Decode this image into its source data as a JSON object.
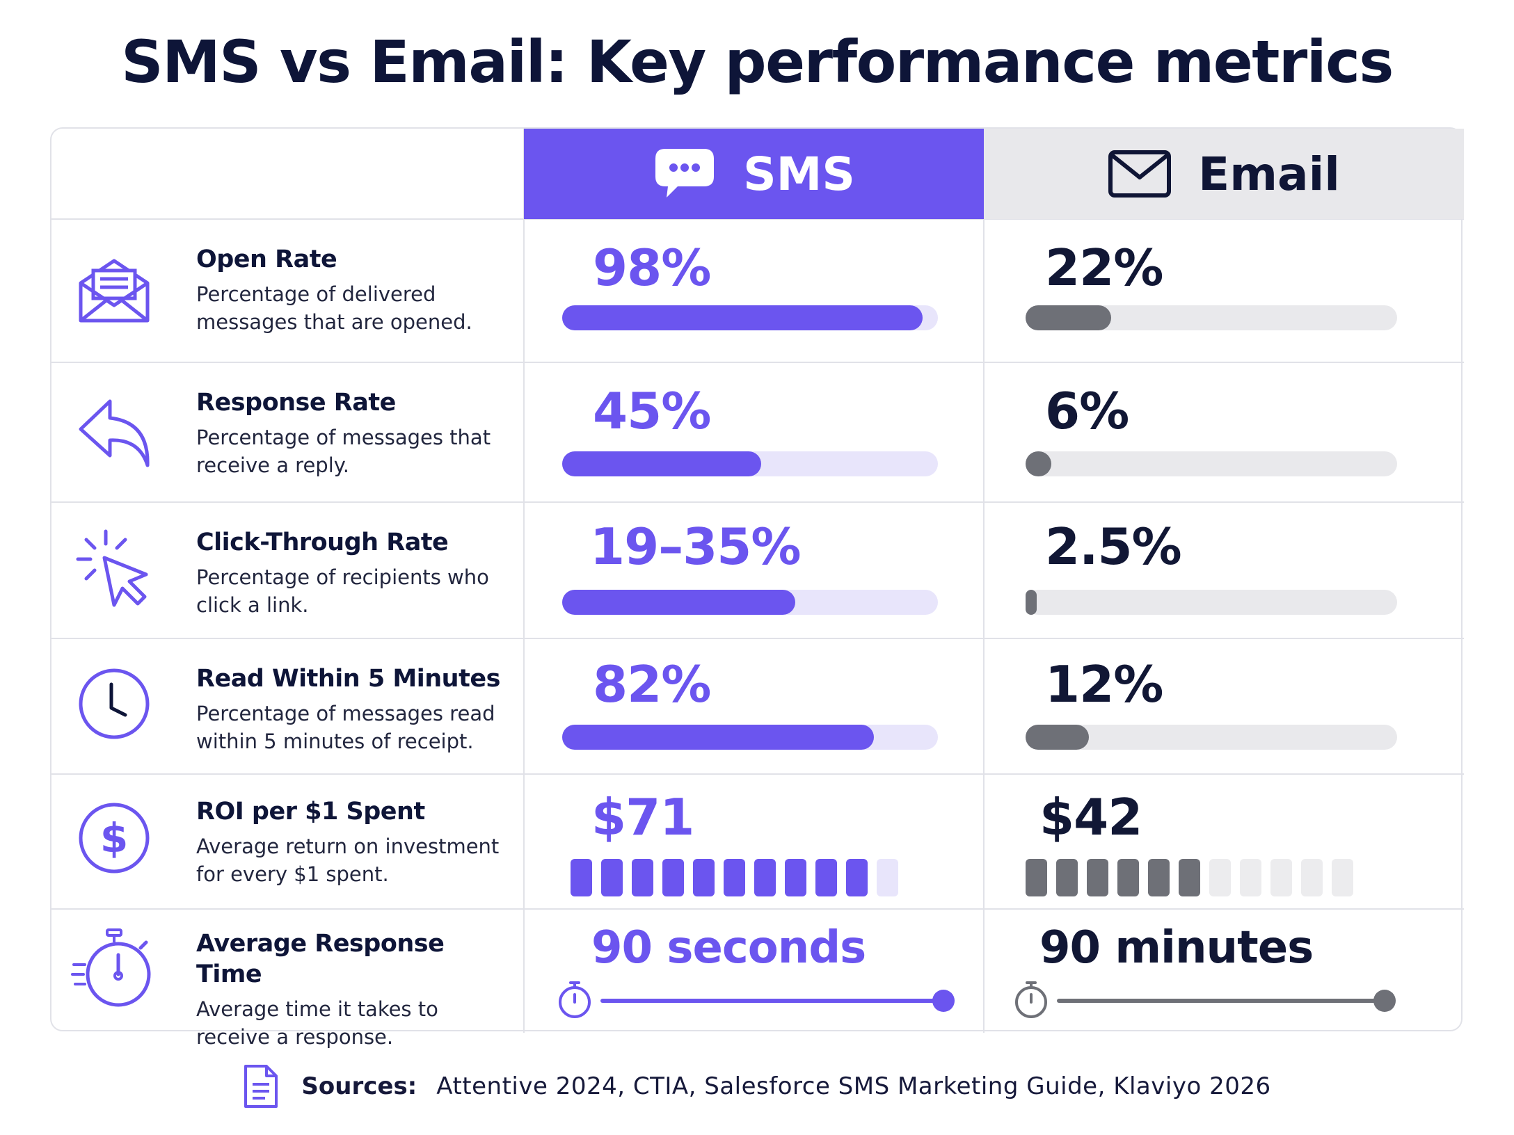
{
  "title": "SMS vs Email: Key performance metrics",
  "columns": {
    "sms": {
      "label": "SMS",
      "icon": "chat-bubble-icon",
      "color": "#6b55ef"
    },
    "email": {
      "label": "Email",
      "icon": "envelope-icon",
      "color": "#6e7077"
    }
  },
  "metrics": [
    {
      "name": "Open Rate",
      "desc_line1": "Percentage of delivered",
      "desc_line2": "messages that are opened.",
      "icon": "open-envelope-icon",
      "sms": "98%",
      "email": "22%"
    },
    {
      "name": "Response Rate",
      "desc_line1": "Percentage of messages that",
      "desc_line2": "receive a reply.",
      "icon": "reply-arrow-icon",
      "sms": "45%",
      "email": "6%"
    },
    {
      "name": "Click-Through Rate",
      "desc_line1": "Percentage of recipients who",
      "desc_line2": "click a link.",
      "icon": "cursor-click-icon",
      "sms": "19–35%",
      "email": "2.5%"
    },
    {
      "name": "Read Within 5 Minutes",
      "desc_line1": "Percentage of messages read",
      "desc_line2": "within 5 minutes of receipt.",
      "icon": "clock-icon",
      "sms": "82%",
      "email": "12%"
    },
    {
      "name": "ROI per $1 Spent",
      "desc_line1": "Average return on investment",
      "desc_line2": "for every $1 spent.",
      "icon": "dollar-circle-icon",
      "sms": "$71",
      "email": "$42"
    },
    {
      "name": "Average Response Time",
      "desc_line1": "Average time it takes to",
      "desc_line2": "receive a response.",
      "icon": "stopwatch-icon",
      "sms": "90 seconds",
      "email": "90 minutes"
    }
  ],
  "chart_data": {
    "type": "table",
    "title": "SMS vs Email: Key performance metrics",
    "categories": [
      "Open Rate",
      "Response Rate",
      "Click-Through Rate",
      "Read Within 5 Minutes",
      "ROI per $1 Spent",
      "Average Response Time"
    ],
    "series": [
      {
        "name": "SMS",
        "labels": [
          "98%",
          "45%",
          "19–35%",
          "82%",
          "$71",
          "90 seconds"
        ],
        "values": [
          98,
          45,
          35,
          82,
          71,
          90
        ],
        "units": [
          "%",
          "%",
          "%",
          "%",
          "$",
          "seconds"
        ]
      },
      {
        "name": "Email",
        "labels": [
          "22%",
          "6%",
          "2.5%",
          "12%",
          "$42",
          "90 minutes"
        ],
        "values": [
          22,
          6,
          2.5,
          12,
          42,
          90
        ],
        "units": [
          "%",
          "%",
          "%",
          "%",
          "$",
          "minutes"
        ]
      }
    ],
    "bar_fill_fraction": {
      "sms": [
        0.96,
        0.53,
        0.62,
        0.83
      ],
      "email": [
        0.23,
        0.07,
        0.03,
        0.17
      ]
    },
    "roi_blocks": {
      "total": 11,
      "sms_on": 10,
      "email_total": 11,
      "email_on": 6
    },
    "response_time_fill": {
      "sms": 1.0,
      "email": 1.0
    }
  },
  "footer": {
    "icon": "document-icon",
    "label": "Sources:",
    "text": "Attentive 2024, CTIA, Salesforce SMS Marketing Guide, Klaviyo 2026"
  }
}
